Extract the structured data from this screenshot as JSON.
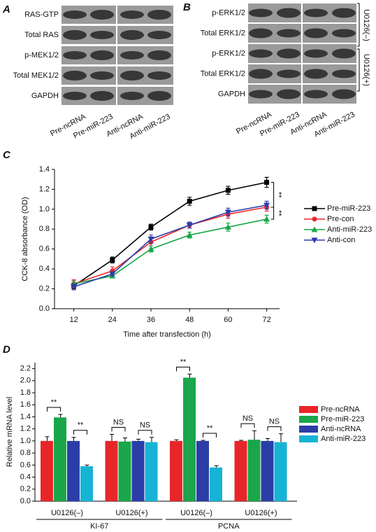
{
  "blot_a": {
    "panel_label": "A",
    "rows": [
      "RAS-GTP",
      "Total RAS",
      "p-MEK1/2",
      "Total MEK1/2",
      "GAPDH"
    ],
    "lanes": [
      "Pre-ncRNA",
      "Pre-miR-223",
      "Anti-ncRNA",
      "Anti-miR-223"
    ]
  },
  "blot_b": {
    "panel_label": "B",
    "rows": [
      "p-ERK1/2",
      "Total ERK1/2",
      "p-ERK1/2",
      "Total ERK1/2",
      "GAPDH"
    ],
    "lanes": [
      "Pre-ncRNA",
      "Pre-miR-223",
      "Anti-ncRNA",
      "Anti-miR-223"
    ],
    "groups": [
      "U0126(–)",
      "U0126(+)"
    ]
  },
  "chart_data": [
    {
      "type": "line",
      "panel_label": "C",
      "x_label": "Time after transfection (h)",
      "y_label": "CCK-8 absorbance (OD)",
      "x": [
        12,
        24,
        36,
        48,
        60,
        72
      ],
      "xlim": [
        6,
        76
      ],
      "xticks": [
        12,
        24,
        36,
        48,
        60,
        72
      ],
      "ylim": [
        0,
        1.4
      ],
      "yticks": [
        {
          "value": 0,
          "label": "0.0"
        },
        0.2,
        0.4,
        0.6,
        0.8,
        {
          "value": 1,
          "label": "1.0"
        },
        1.2,
        1.4
      ],
      "series": [
        {
          "name": "Pre-miR-223",
          "color": "#000000",
          "marker": "square",
          "values": [
            0.23,
            0.49,
            0.82,
            1.08,
            1.19,
            1.27
          ],
          "errors": [
            0.03,
            0.03,
            0.03,
            0.04,
            0.04,
            0.05
          ]
        },
        {
          "name": "Pre-con",
          "color": "#e8262a",
          "marker": "circle",
          "values": [
            0.25,
            0.38,
            0.67,
            0.84,
            0.95,
            1.02
          ],
          "errors": [
            0.04,
            0.04,
            0.04,
            0.03,
            0.04,
            0.04
          ]
        },
        {
          "name": "Anti-miR-223",
          "color": "#1aa64a",
          "marker": "triangle-up",
          "values": [
            0.25,
            0.33,
            0.6,
            0.74,
            0.82,
            0.9
          ],
          "errors": [
            0.03,
            0.02,
            0.03,
            0.03,
            0.04,
            0.04
          ]
        },
        {
          "name": "Anti-con",
          "color": "#2b3ea8",
          "marker": "triangle-down",
          "values": [
            0.22,
            0.35,
            0.7,
            0.84,
            0.97,
            1.04
          ],
          "errors": [
            0.03,
            0.02,
            0.04,
            0.03,
            0.04,
            0.04
          ]
        }
      ],
      "annotations": [
        "**",
        "**"
      ]
    },
    {
      "type": "bar",
      "panel_label": "D",
      "y_label": "Relative mRNA level",
      "categories": [
        "U0126(–)",
        "U0126(+)",
        "U0126(–)",
        "U0126(+)"
      ],
      "category_groups": [
        "KI-67",
        "PCNA"
      ],
      "ylim": [
        0,
        2.3
      ],
      "yticks": [
        {
          "value": 0,
          "label": "0.0"
        },
        0.2,
        0.4,
        0.6,
        0.8,
        {
          "value": 1,
          "label": "1.0"
        },
        1.2,
        1.4,
        1.6,
        1.8,
        {
          "value": 2,
          "label": "2.0"
        },
        2.2
      ],
      "series": [
        {
          "name": "Pre-ncRNA",
          "color": "#e8262a",
          "values": [
            1.0,
            1.0,
            1.0,
            1.0
          ],
          "errors": [
            0.07,
            0.11,
            0.02,
            0.01
          ]
        },
        {
          "name": "Pre-miR-223",
          "color": "#1aa64a",
          "values": [
            1.39,
            0.99,
            2.05,
            1.02
          ],
          "errors": [
            0.05,
            0.06,
            0.06,
            0.15
          ]
        },
        {
          "name": "Anti-ncRNA",
          "color": "#2b3ea8",
          "values": [
            1.0,
            1.0,
            1.0,
            1.0
          ],
          "errors": [
            0.06,
            0.03,
            0.01,
            0.04
          ]
        },
        {
          "name": "Anti-miR-223",
          "color": "#17b3d4",
          "values": [
            0.58,
            0.98,
            0.56,
            0.98
          ],
          "errors": [
            0.02,
            0.08,
            0.03,
            0.14
          ]
        }
      ],
      "comparisons": [
        [
          "**",
          "**"
        ],
        [
          "NS",
          "NS"
        ],
        [
          "**",
          "**"
        ],
        [
          "NS",
          "NS"
        ]
      ]
    }
  ]
}
